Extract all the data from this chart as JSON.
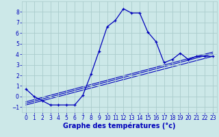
{
  "xlabel": "Graphe des températures (°c)",
  "background_color": "#cce8e8",
  "grid_color": "#aacccc",
  "line_color": "#0000bb",
  "hours": [
    0,
    1,
    2,
    3,
    4,
    5,
    6,
    7,
    8,
    9,
    10,
    11,
    12,
    13,
    14,
    15,
    16,
    17,
    18,
    19,
    20,
    21,
    22,
    23
  ],
  "temp": [
    0.7,
    0.0,
    -0.4,
    -0.8,
    -0.8,
    -0.8,
    -0.8,
    0.1,
    2.1,
    4.3,
    6.6,
    7.2,
    8.3,
    7.9,
    7.9,
    6.1,
    5.2,
    3.2,
    3.5,
    4.1,
    3.5,
    3.8,
    3.8,
    3.8
  ],
  "line1_x": [
    0,
    23
  ],
  "line1_y": [
    -0.8,
    3.8
  ],
  "line2_x": [
    0,
    23
  ],
  "line2_y": [
    -0.65,
    4.05
  ],
  "line3_x": [
    0,
    23
  ],
  "line3_y": [
    -0.5,
    4.2
  ],
  "ylim": [
    -1.5,
    9.0
  ],
  "xlim": [
    -0.5,
    23.5
  ],
  "yticks": [
    -1,
    0,
    1,
    2,
    3,
    4,
    5,
    6,
    7,
    8
  ],
  "xticks": [
    0,
    1,
    2,
    3,
    4,
    5,
    6,
    7,
    8,
    9,
    10,
    11,
    12,
    13,
    14,
    15,
    16,
    17,
    18,
    19,
    20,
    21,
    22,
    23
  ],
  "tick_fontsize": 5.5,
  "xlabel_fontsize": 7,
  "figsize": [
    3.2,
    2.0
  ],
  "dpi": 100
}
